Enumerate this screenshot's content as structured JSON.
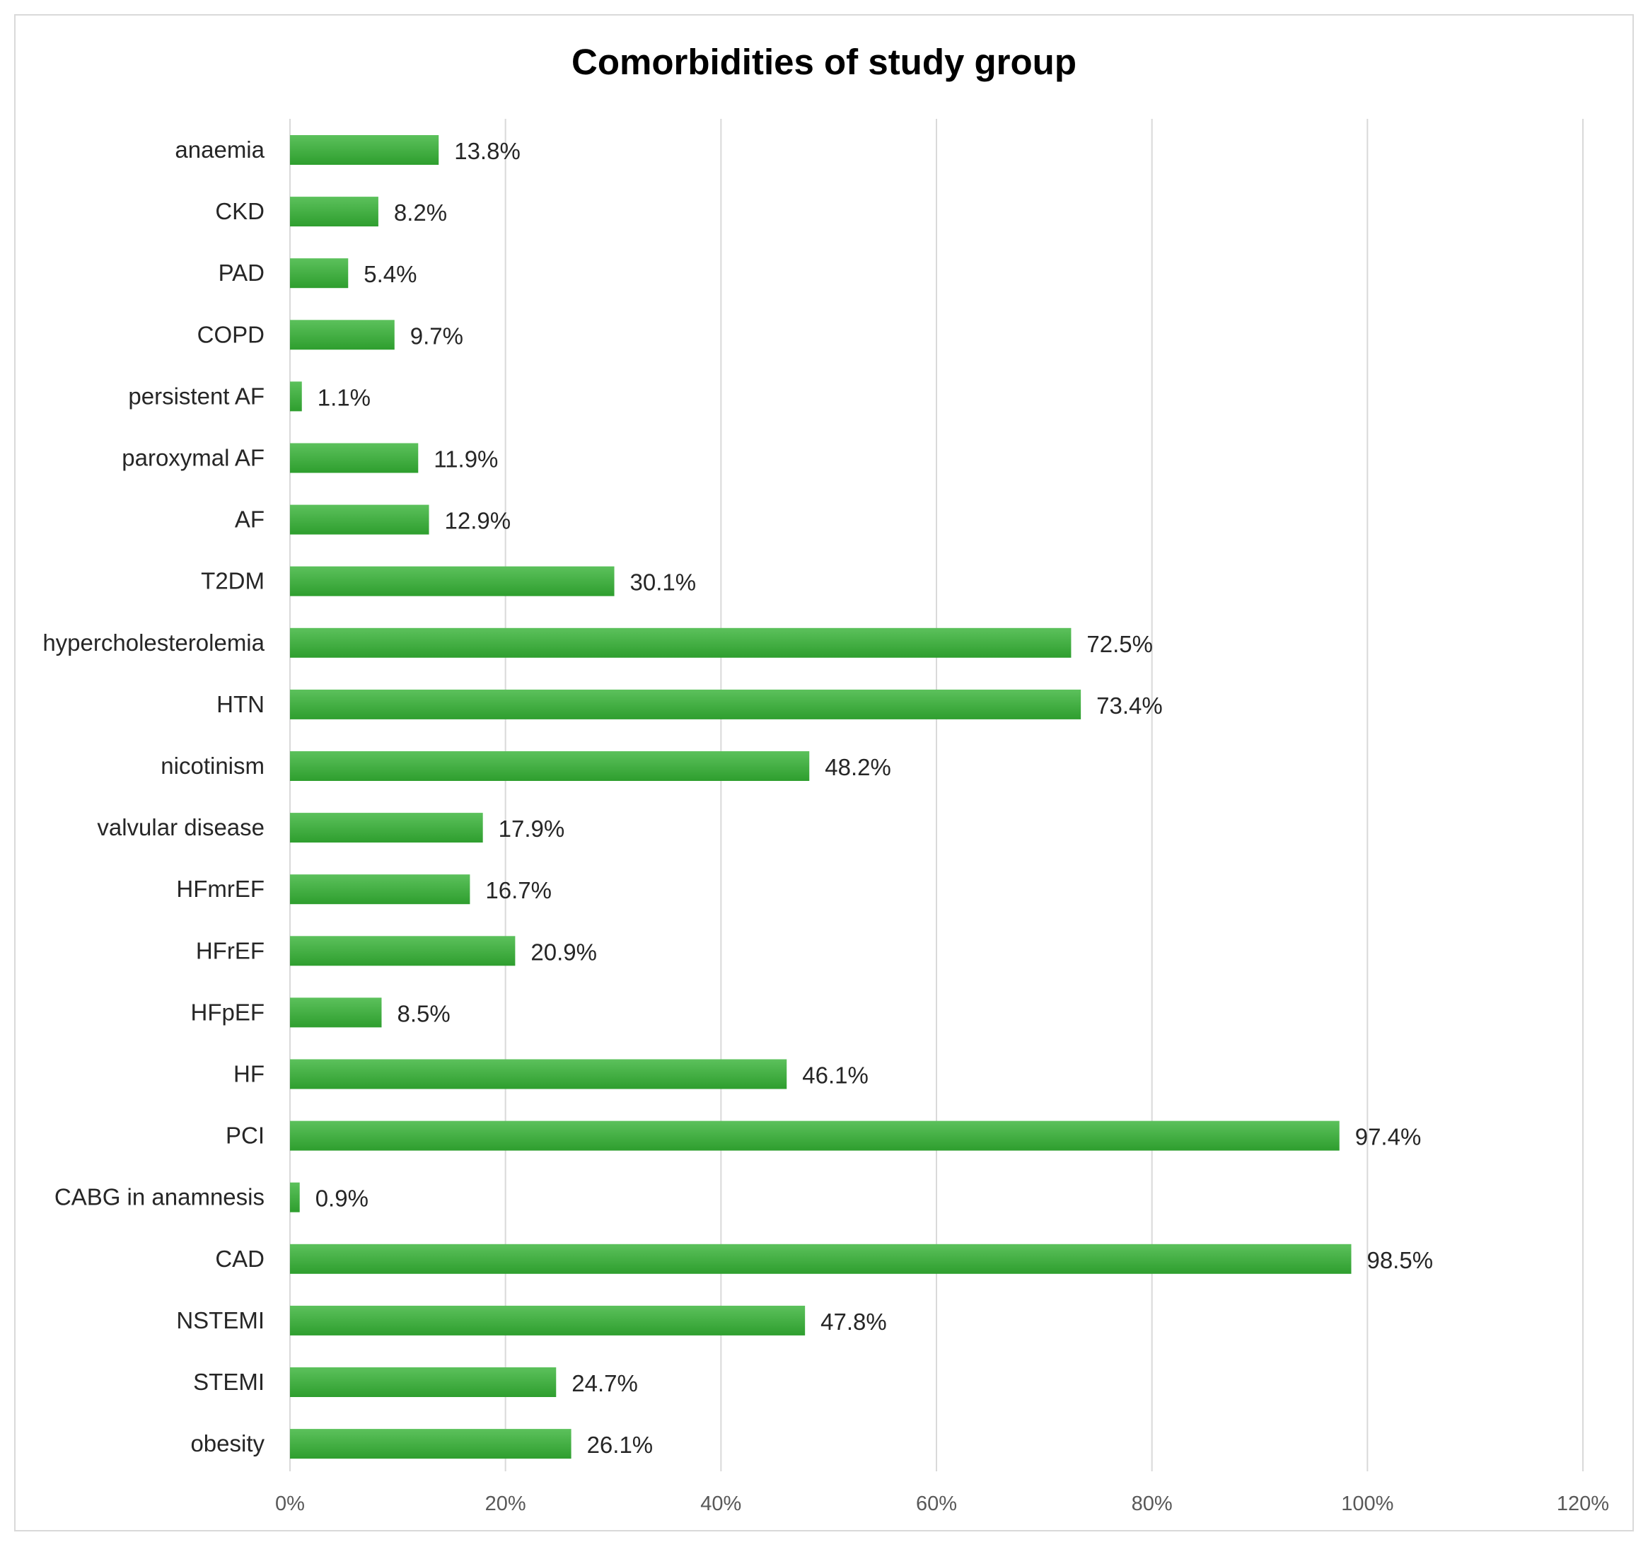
{
  "chart_data": {
    "type": "bar",
    "orientation": "horizontal",
    "title": "Comorbidities of study group",
    "xlabel": "",
    "ylabel": "",
    "categories": [
      "anaemia",
      "CKD",
      "PAD",
      "COPD",
      "persistent AF",
      "paroxymal AF",
      "AF",
      "T2DM",
      "hypercholesterolemia",
      "HTN",
      "nicotinism",
      "valvular disease",
      "HFmrEF",
      "HFrEF",
      "HFpEF",
      "HF",
      "PCI",
      "CABG in anamnesis",
      "CAD",
      "NSTEMI",
      "STEMI",
      "obesity"
    ],
    "values": [
      13.8,
      8.2,
      5.4,
      9.7,
      1.1,
      11.9,
      12.9,
      30.1,
      72.5,
      73.4,
      48.2,
      17.9,
      16.7,
      20.9,
      8.5,
      46.1,
      97.4,
      0.9,
      98.5,
      47.8,
      24.7,
      26.1
    ],
    "value_labels": [
      "13.8%",
      "8.2%",
      "5.4%",
      "9.7%",
      "1.1%",
      "11.9%",
      "12.9%",
      "30.1%",
      "72.5%",
      "73.4%",
      "48.2%",
      "17.9%",
      "16.7%",
      "20.9%",
      "8.5%",
      "46.1%",
      "97.4%",
      "0.9%",
      "98.5%",
      "47.8%",
      "24.7%",
      "26.1%"
    ],
    "x_ticks": [
      "0%",
      "20%",
      "40%",
      "60%",
      "80%",
      "100%",
      "120%"
    ],
    "xlim": [
      0,
      120
    ],
    "grid": true,
    "legend": "none",
    "colors": {
      "bar_light": "#5cc15c",
      "bar_dark": "#2e9e2e",
      "grid": "#d9d9d9",
      "frame": "#d9d9d9"
    }
  }
}
